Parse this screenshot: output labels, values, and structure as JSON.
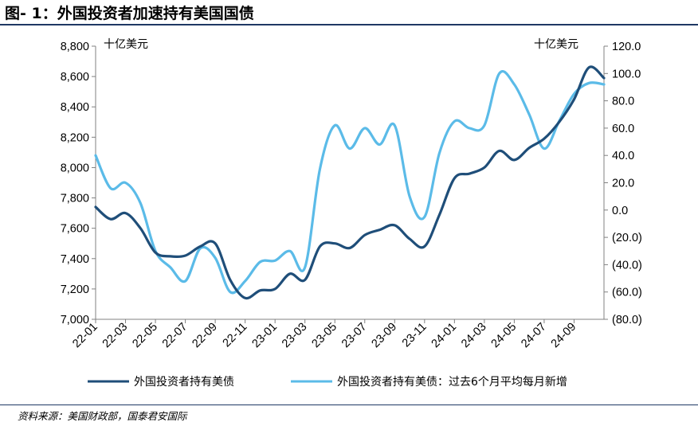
{
  "figure_title": "图- 1：外国投资者加速持有美国国债",
  "source": "资料来源：美国财政部，国泰君安国际",
  "chart_data": {
    "type": "line",
    "left_unit": "十亿美元",
    "right_unit": "十亿美元",
    "x_tick_labels": [
      "22-01",
      "22-03",
      "22-05",
      "22-07",
      "22-09",
      "22-11",
      "23-01",
      "23-03",
      "23-05",
      "23-07",
      "23-09",
      "23-11",
      "24-01",
      "24-03",
      "24-05",
      "24-07",
      "24-09"
    ],
    "ylim_left": [
      7000,
      8800
    ],
    "yticks_left": [
      "7,000",
      "7,200",
      "7,400",
      "7,600",
      "7,800",
      "8,000",
      "8,200",
      "8,400",
      "8,600",
      "8,800"
    ],
    "ylim_right": [
      -80,
      120
    ],
    "yticks_right": [
      "(80.0)",
      "(60.0)",
      "(40.0)",
      "(20.0)",
      "0.0",
      "20.0",
      "40.0",
      "60.0",
      "80.0",
      "100.0",
      "120.0"
    ],
    "series": [
      {
        "name": "外国投资者持有美债",
        "axis": "left",
        "color": "#1f4e79",
        "x": [
          "22-01",
          "22-02",
          "22-03",
          "22-04",
          "22-05",
          "22-06",
          "22-07",
          "22-08",
          "22-09",
          "22-10",
          "22-11",
          "22-12",
          "23-01",
          "23-02",
          "23-03",
          "23-04",
          "23-05",
          "23-06",
          "23-07",
          "23-08",
          "23-09",
          "23-10",
          "23-11",
          "23-12",
          "24-01",
          "24-02",
          "24-03",
          "24-04",
          "24-05",
          "24-06",
          "24-07",
          "24-08",
          "24-09",
          "24-10",
          "24-11"
        ],
        "values": [
          7740,
          7660,
          7700,
          7600,
          7440,
          7415,
          7420,
          7480,
          7500,
          7260,
          7140,
          7190,
          7200,
          7300,
          7260,
          7480,
          7500,
          7470,
          7555,
          7590,
          7620,
          7530,
          7480,
          7690,
          7930,
          7960,
          8000,
          8110,
          8050,
          8130,
          8190,
          8300,
          8450,
          8660,
          8590
        ]
      },
      {
        "name": "外国投资者持有美债：过去6个月平均每月新增",
        "axis": "right",
        "color": "#5bbbe8",
        "x": [
          "22-01",
          "22-02",
          "22-03",
          "22-04",
          "22-05",
          "22-06",
          "22-07",
          "22-08",
          "22-09",
          "22-10",
          "22-11",
          "22-12",
          "23-01",
          "23-02",
          "23-03",
          "23-04",
          "23-05",
          "23-06",
          "23-07",
          "23-08",
          "23-09",
          "23-10",
          "23-11",
          "23-12",
          "24-01",
          "24-02",
          "24-03",
          "24-04",
          "24-05",
          "24-06",
          "24-07",
          "24-08",
          "24-09",
          "24-10",
          "24-11"
        ],
        "values": [
          40,
          16,
          20,
          5,
          -30,
          -42,
          -52,
          -28,
          -35,
          -60,
          -52,
          -38,
          -37,
          -30,
          -42,
          30,
          62,
          45,
          60,
          48,
          62,
          10,
          -5,
          42,
          65,
          60,
          62,
          100,
          92,
          70,
          45,
          65,
          85,
          93,
          92
        ]
      }
    ]
  }
}
